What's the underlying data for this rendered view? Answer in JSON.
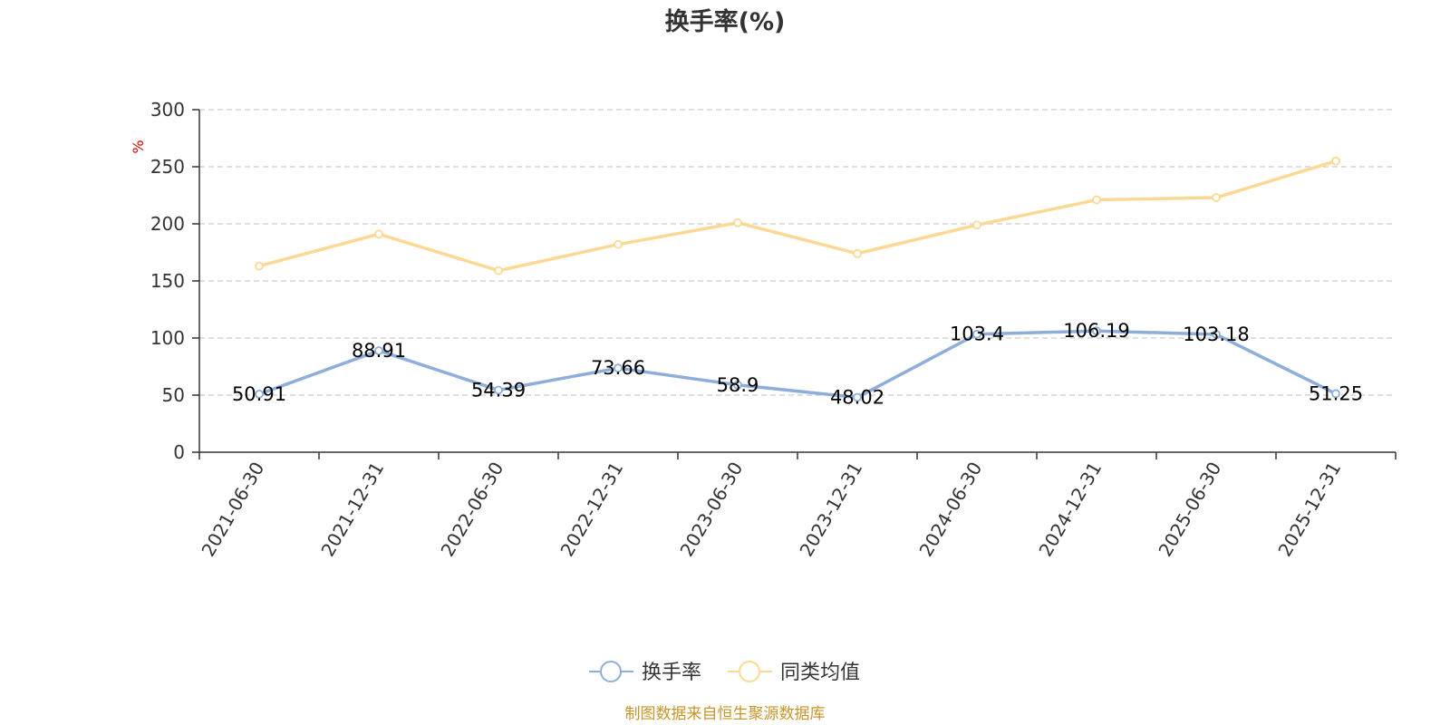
{
  "chart_data": {
    "type": "line",
    "title": "换手率(%)",
    "unit": "%",
    "categories": [
      "2021-06-30",
      "2021-12-31",
      "2022-06-30",
      "2022-12-31",
      "2023-06-30",
      "2023-12-31",
      "2024-06-30",
      "2024-12-31",
      "2025-06-30",
      "2025-12-31"
    ],
    "series": [
      {
        "name": "换手率",
        "color": "#8eaddb",
        "values": [
          50.91,
          88.91,
          54.39,
          73.66,
          58.9,
          48.02,
          103.4,
          106.19,
          103.18,
          51.25
        ],
        "labels": [
          "50.91",
          "88.91",
          "54.39",
          "73.66",
          "58.9",
          "48.02",
          "103.4",
          "106.19",
          "103.18",
          "51.25"
        ]
      },
      {
        "name": "同类均值",
        "color": "#fbd994",
        "values": [
          163,
          191,
          159,
          182,
          201,
          174,
          199,
          221,
          223,
          255
        ]
      }
    ],
    "ylim": [
      0,
      300
    ],
    "yticks": [
      "0",
      "50",
      "100",
      "150",
      "200",
      "250",
      "300"
    ],
    "grid": true,
    "legend_position": "bottom-center",
    "unit_color": "#e00000",
    "source": "制图数据来自恒生聚源数据库",
    "source_color": "#c8952a"
  }
}
